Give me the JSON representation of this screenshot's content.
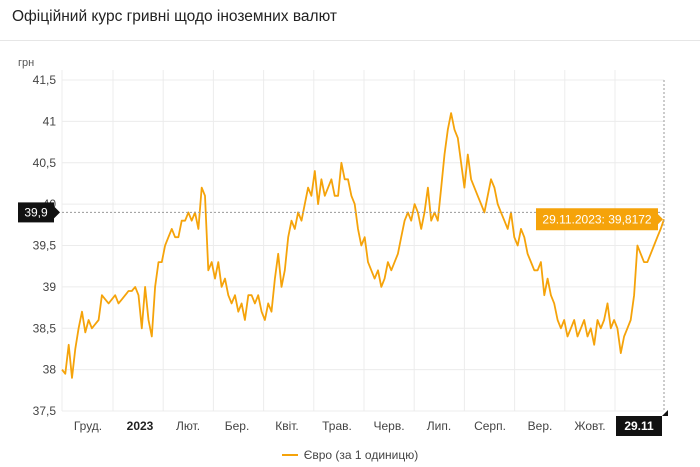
{
  "title": "Офіційний курс гривні щодо іноземних валют",
  "colors": {
    "series": "#f5a30a",
    "callout_bg": "#f5a30a",
    "marker_bg": "#111111",
    "grid": "#ececec"
  },
  "chart_data": {
    "type": "line",
    "title": "Офіційний курс гривні щодо іноземних валют",
    "ylabel": "грн",
    "xlabel": "",
    "ylim": [
      37.5,
      41.5
    ],
    "yticks": [
      "37,5",
      "38",
      "38,5",
      "39",
      "39,5",
      "40",
      "40,5",
      "41",
      "41,5"
    ],
    "xticks": [
      {
        "label": "Груд.",
        "bold": false
      },
      {
        "label": "2023",
        "bold": true
      },
      {
        "label": "Лют.",
        "bold": false
      },
      {
        "label": "Бер.",
        "bold": false
      },
      {
        "label": "Квіт.",
        "bold": false
      },
      {
        "label": "Трав.",
        "bold": false
      },
      {
        "label": "Черв.",
        "bold": false
      },
      {
        "label": "Лип.",
        "bold": false
      },
      {
        "label": "Серп.",
        "bold": false
      },
      {
        "label": "Вер.",
        "bold": false
      },
      {
        "label": "Жовт.",
        "bold": false
      }
    ],
    "grid": true,
    "legend": "bottom",
    "crosshair": {
      "y_label": "39,9",
      "x_label": "29.11",
      "callout": "29.11.2023: 39,8172"
    },
    "series": [
      {
        "name": "Євро (за 1 одиницю)",
        "values": [
          38.0,
          37.95,
          38.3,
          37.9,
          38.25,
          38.5,
          38.7,
          38.45,
          38.6,
          38.5,
          38.55,
          38.6,
          38.9,
          38.85,
          38.8,
          38.85,
          38.9,
          38.8,
          38.85,
          38.9,
          38.95,
          38.95,
          39.0,
          38.9,
          38.5,
          39.0,
          38.6,
          38.4,
          39.0,
          39.3,
          39.3,
          39.5,
          39.6,
          39.7,
          39.6,
          39.6,
          39.8,
          39.8,
          39.9,
          39.8,
          39.9,
          39.7,
          40.2,
          40.1,
          39.2,
          39.3,
          39.1,
          39.3,
          39.0,
          39.1,
          38.9,
          38.8,
          38.9,
          38.7,
          38.8,
          38.6,
          38.9,
          38.9,
          38.8,
          38.9,
          38.7,
          38.6,
          38.8,
          38.7,
          39.1,
          39.4,
          39.0,
          39.2,
          39.6,
          39.8,
          39.7,
          39.9,
          39.8,
          40.0,
          40.2,
          40.1,
          40.4,
          40.0,
          40.3,
          40.1,
          40.2,
          40.3,
          40.1,
          40.1,
          40.5,
          40.3,
          40.3,
          40.1,
          40.0,
          39.7,
          39.5,
          39.6,
          39.3,
          39.2,
          39.1,
          39.2,
          39.0,
          39.1,
          39.3,
          39.2,
          39.3,
          39.4,
          39.6,
          39.8,
          39.9,
          39.8,
          40.0,
          39.9,
          39.7,
          39.9,
          40.2,
          39.8,
          39.9,
          39.8,
          40.2,
          40.6,
          40.9,
          41.1,
          40.9,
          40.8,
          40.5,
          40.2,
          40.6,
          40.3,
          40.2,
          40.1,
          40.0,
          39.9,
          40.1,
          40.3,
          40.2,
          40.0,
          39.9,
          39.8,
          39.7,
          39.9,
          39.6,
          39.5,
          39.7,
          39.6,
          39.4,
          39.3,
          39.2,
          39.2,
          39.3,
          38.9,
          39.1,
          38.9,
          38.8,
          38.6,
          38.5,
          38.6,
          38.4,
          38.5,
          38.6,
          38.4,
          38.5,
          38.6,
          38.4,
          38.5,
          38.3,
          38.6,
          38.5,
          38.6,
          38.8,
          38.5,
          38.6,
          38.5,
          38.2,
          38.4,
          38.5,
          38.6,
          38.9,
          39.5,
          39.4,
          39.3,
          39.3,
          39.4,
          39.5,
          39.6,
          39.7,
          39.8172
        ]
      }
    ]
  }
}
